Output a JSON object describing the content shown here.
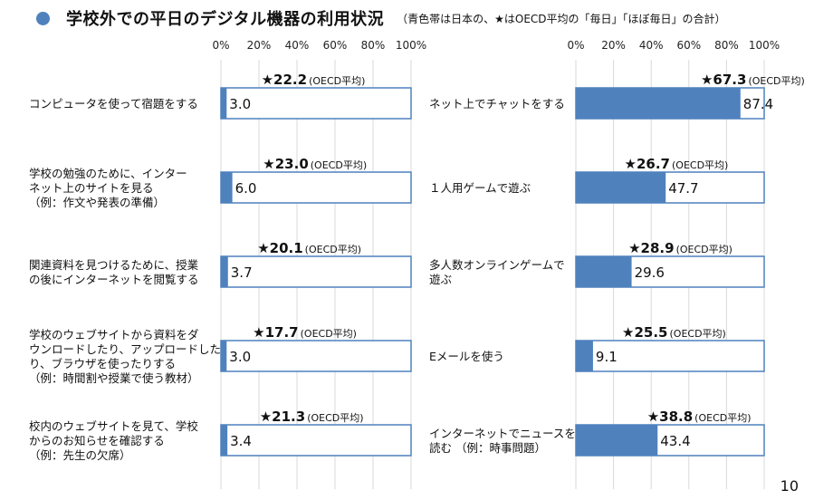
{
  "title": {
    "main": "学校外での平日のデジタル機器の利用状況",
    "note": "（青色帯は日本の、★はOECD平均の「毎日」「ほぼ毎日」の合計）"
  },
  "page_number": "10",
  "colors": {
    "japan_bar": "#4f81bd",
    "bar_outline": "#4f81bd",
    "background_bar": "#ffffff",
    "grid": "#d9d9d9"
  },
  "chart_data": [
    {
      "type": "bar",
      "orientation": "horizontal",
      "xlim": [
        0,
        100
      ],
      "tick_labels": [
        "0%",
        "20%",
        "40%",
        "60%",
        "80%",
        "100%"
      ],
      "oecd_suffix": "(OECD平均)",
      "categories": [
        [
          "コンピュータを使って宿題をする"
        ],
        [
          "学校の勉強のために、インター",
          "ネット上のサイトを見る",
          "（例：作文や発表の準備）"
        ],
        [
          "関連資料を見つけるために、授業",
          "の後にインターネットを閲覧する"
        ],
        [
          "学校のウェブサイトから資料をダ",
          "ウンロードしたり、アップロードした",
          "り、ブラウザを使ったりする",
          "（例：時間割や授業で使う教材）"
        ],
        [
          "校内のウェブサイトを見て、学校",
          "からのお知らせを確認する",
          "（例：先生の欠席）"
        ]
      ],
      "series": [
        {
          "values": [
            3.0,
            6.0,
            3.7,
            3.0,
            3.4
          ],
          "labels": [
            "3.0",
            "6.0",
            "3.7",
            "3.0",
            "3.4"
          ]
        },
        {
          "marker": "star",
          "values": [
            22.2,
            23.0,
            20.1,
            17.7,
            21.3
          ],
          "labels": [
            "★22.2",
            "★23.0",
            "★20.1",
            "★17.7",
            "★21.3"
          ]
        }
      ]
    },
    {
      "type": "bar",
      "orientation": "horizontal",
      "xlim": [
        0,
        100
      ],
      "tick_labels": [
        "0%",
        "20%",
        "40%",
        "60%",
        "80%",
        "100%"
      ],
      "oecd_suffix": "(OECD平均)",
      "categories": [
        [
          "ネット上でチャットをする"
        ],
        [
          "１人用ゲームで遊ぶ"
        ],
        [
          "多人数オンラインゲームで",
          "遊ぶ"
        ],
        [
          "Eメールを使う"
        ],
        [
          "インターネットでニュースを",
          "読む （例：時事問題）"
        ]
      ],
      "series": [
        {
          "values": [
            87.4,
            47.7,
            29.6,
            9.1,
            43.4
          ],
          "labels": [
            "87.4",
            "47.7",
            "29.6",
            "9.1",
            "43.4"
          ]
        },
        {
          "marker": "star",
          "values": [
            67.3,
            26.7,
            28.9,
            25.5,
            38.8
          ],
          "labels": [
            "★67.3",
            "★26.7",
            "★28.9",
            "★25.5",
            "★38.8"
          ]
        }
      ]
    }
  ]
}
